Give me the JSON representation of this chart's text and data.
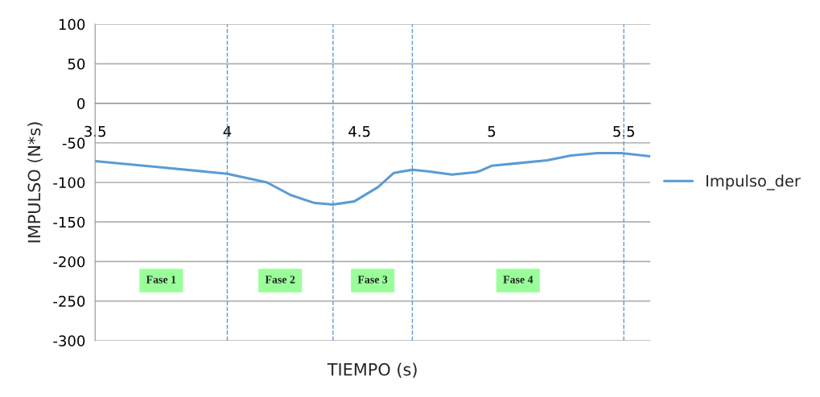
{
  "chart_data": {
    "type": "line",
    "xlabel": "TIEMPO (s)",
    "ylabel": "IMPULSO (N*s)",
    "x": [
      3.5,
      3.75,
      4.0,
      4.15,
      4.24,
      4.33,
      4.4,
      4.48,
      4.57,
      4.63,
      4.7,
      4.76,
      4.85,
      4.94,
      4.96,
      5.0,
      5.09,
      5.21,
      5.3,
      5.4,
      5.49,
      5.6
    ],
    "series": [
      {
        "name": "Impulso_der",
        "color": "#5b9bd5",
        "values": [
          -73,
          -81,
          -89,
          -100,
          -116,
          -126,
          -128,
          -124,
          -106,
          -88,
          -84,
          -86,
          -90,
          -87,
          -85,
          -79,
          -76,
          -72,
          -66,
          -63,
          -63,
          -67
        ]
      }
    ],
    "xlim": [
      3.5,
      5.6
    ],
    "xticks": [
      3.5,
      4,
      4.5,
      5,
      5.5
    ],
    "ylim": [
      -300,
      100
    ],
    "yticks": [
      -300,
      -250,
      -200,
      -150,
      -100,
      -50,
      0,
      50,
      100
    ],
    "grid": "y",
    "legend": "right",
    "marker": "none",
    "line_style": "solid",
    "ref_lines": [
      {
        "axis": "x",
        "value": 4.0,
        "color": "#5b9bd5",
        "line_style": "dashed"
      },
      {
        "axis": "x",
        "value": 4.4,
        "color": "#5b9bd5",
        "line_style": "dashed"
      },
      {
        "axis": "x",
        "value": 4.7,
        "color": "#5b9bd5",
        "line_style": "dashed"
      },
      {
        "axis": "x",
        "value": 5.5,
        "color": "#5b9bd5",
        "line_style": "dashed"
      }
    ],
    "annotations": [
      "Fase 1",
      "Fase 2",
      "Fase 3",
      "Fase 4"
    ]
  }
}
